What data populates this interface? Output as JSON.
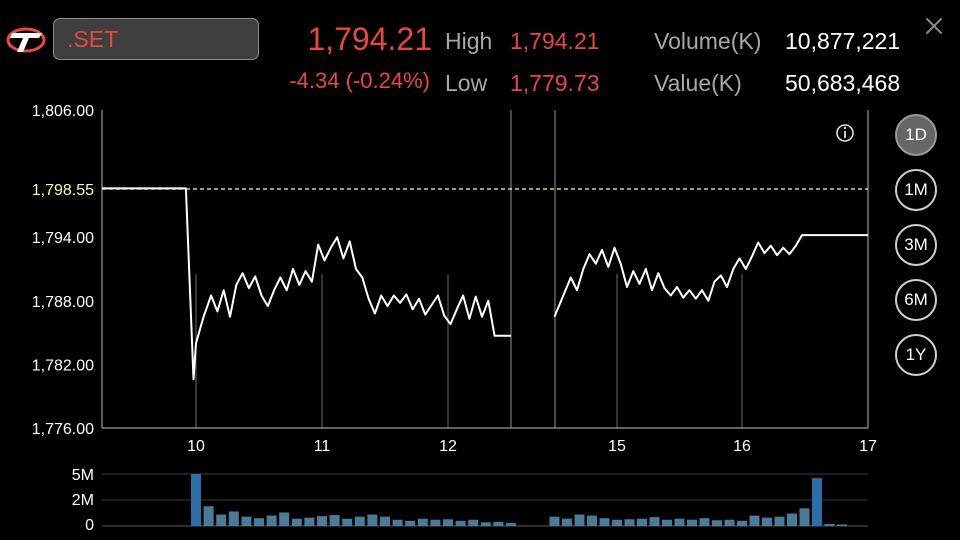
{
  "header": {
    "symbol": ".SET",
    "last_price": "1,794.21",
    "change": "-4.34",
    "change_pct": "(-0.24%)",
    "high_label": "High",
    "high_value": "1,794.21",
    "low_label": "Low",
    "low_value": "1,779.73",
    "volume_label": "Volume(K)",
    "volume_value": "10,877,221",
    "value_label": "Value(K)",
    "value_value": "50,683,468"
  },
  "timeframes": [
    {
      "label": "1D",
      "active": true
    },
    {
      "label": "1M",
      "active": false
    },
    {
      "label": "3M",
      "active": false
    },
    {
      "label": "6M",
      "active": false
    },
    {
      "label": "1Y",
      "active": false
    }
  ],
  "colors": {
    "price_line": "#ffffff",
    "prev_close_line": "#ffff99",
    "down": "#e8483f",
    "volume_bar": "#4c7a99",
    "volume_bar_peak": "#2c6fa8"
  },
  "chart_data": {
    "type": "line",
    "prev_close": 1798.55,
    "prev_close_label": "1,798.55",
    "ylim": [
      1776,
      1806
    ],
    "y_ticks": [
      "1,806.00",
      "1,794.00",
      "1,788.00",
      "1,782.00",
      "1,776.00"
    ],
    "x_ticks": [
      "10",
      "11",
      "12",
      "15",
      "16",
      "17"
    ],
    "x_range": [
      9.25,
      17.0
    ],
    "sessions": [
      {
        "segment": "morning",
        "x": [
          9.25,
          9.92,
          9.98,
          10.0,
          10.06,
          10.12,
          10.17,
          10.22,
          10.27,
          10.32,
          10.37,
          10.42,
          10.47,
          10.52,
          10.57,
          10.62,
          10.67,
          10.72,
          10.77,
          10.82,
          10.87,
          10.92,
          10.97,
          11.02,
          11.07,
          11.12,
          11.17,
          11.22,
          11.27,
          11.32,
          11.37,
          11.42,
          11.47,
          11.52,
          11.57,
          11.62,
          11.67,
          11.72,
          11.77,
          11.82,
          11.87,
          11.92,
          11.97,
          12.02,
          12.07,
          12.12,
          12.17,
          12.22,
          12.27,
          12.32,
          12.37,
          12.42,
          12.47
        ],
        "y": [
          1798.6,
          1798.6,
          1780.6,
          1784.0,
          1786.5,
          1788.5,
          1787.0,
          1789.0,
          1786.5,
          1789.5,
          1790.6,
          1789.2,
          1790.3,
          1788.5,
          1787.5,
          1789.0,
          1790.2,
          1789.0,
          1791.0,
          1789.5,
          1790.8,
          1789.8,
          1793.3,
          1791.8,
          1793.0,
          1794.0,
          1792.0,
          1793.6,
          1791.0,
          1790.2,
          1788.2,
          1786.8,
          1788.5,
          1787.5,
          1788.5,
          1787.8,
          1788.6,
          1787.2,
          1788.2,
          1786.7,
          1787.6,
          1788.5,
          1786.6,
          1785.8,
          1787.2,
          1788.5,
          1786.3,
          1788.4,
          1786.5,
          1788.0,
          1784.7,
          1784.7,
          1784.7
        ]
      },
      {
        "segment": "afternoon",
        "x": [
          14.5,
          14.57,
          14.63,
          14.68,
          14.73,
          14.78,
          14.83,
          14.88,
          14.93,
          14.98,
          15.03,
          15.08,
          15.13,
          15.18,
          15.23,
          15.28,
          15.33,
          15.38,
          15.43,
          15.48,
          15.53,
          15.58,
          15.63,
          15.68,
          15.73,
          15.78,
          15.83,
          15.88,
          15.93,
          15.98,
          16.03,
          16.08,
          16.13,
          16.18,
          16.23,
          16.28,
          16.33,
          16.38,
          16.43,
          16.48,
          16.53,
          16.57,
          17.0
        ],
        "y": [
          1786.5,
          1788.5,
          1790.2,
          1789.0,
          1791.0,
          1792.4,
          1791.5,
          1792.8,
          1791.2,
          1793.0,
          1791.5,
          1789.3,
          1790.8,
          1789.6,
          1791.0,
          1789.0,
          1790.6,
          1789.2,
          1788.5,
          1789.3,
          1788.3,
          1789.0,
          1788.2,
          1789.0,
          1788.0,
          1789.8,
          1790.4,
          1789.3,
          1791.0,
          1792.0,
          1791.0,
          1792.2,
          1793.5,
          1792.5,
          1793.2,
          1792.3,
          1793.0,
          1792.4,
          1793.2,
          1794.2,
          1794.2,
          1794.2,
          1794.2
        ]
      }
    ],
    "volume": {
      "y_ticks": [
        "5M",
        "2M",
        "0"
      ],
      "ylim": [
        0,
        5000000
      ],
      "bars": [
        {
          "x": 10.0,
          "v": 5000000
        },
        {
          "x": 10.1,
          "v": 1900000
        },
        {
          "x": 10.2,
          "v": 1100000
        },
        {
          "x": 10.3,
          "v": 1400000
        },
        {
          "x": 10.4,
          "v": 900000
        },
        {
          "x": 10.5,
          "v": 750000
        },
        {
          "x": 10.6,
          "v": 1000000
        },
        {
          "x": 10.7,
          "v": 1300000
        },
        {
          "x": 10.8,
          "v": 700000
        },
        {
          "x": 10.9,
          "v": 800000
        },
        {
          "x": 11.0,
          "v": 950000
        },
        {
          "x": 11.1,
          "v": 1050000
        },
        {
          "x": 11.2,
          "v": 700000
        },
        {
          "x": 11.3,
          "v": 900000
        },
        {
          "x": 11.4,
          "v": 1100000
        },
        {
          "x": 11.5,
          "v": 900000
        },
        {
          "x": 11.6,
          "v": 600000
        },
        {
          "x": 11.7,
          "v": 500000
        },
        {
          "x": 11.8,
          "v": 700000
        },
        {
          "x": 11.9,
          "v": 600000
        },
        {
          "x": 12.0,
          "v": 650000
        },
        {
          "x": 12.1,
          "v": 500000
        },
        {
          "x": 12.2,
          "v": 600000
        },
        {
          "x": 12.3,
          "v": 350000
        },
        {
          "x": 12.4,
          "v": 400000
        },
        {
          "x": 12.5,
          "v": 300000
        },
        {
          "x": 14.5,
          "v": 900000
        },
        {
          "x": 14.6,
          "v": 700000
        },
        {
          "x": 14.7,
          "v": 1100000
        },
        {
          "x": 14.8,
          "v": 1000000
        },
        {
          "x": 14.9,
          "v": 750000
        },
        {
          "x": 15.0,
          "v": 600000
        },
        {
          "x": 15.1,
          "v": 650000
        },
        {
          "x": 15.2,
          "v": 700000
        },
        {
          "x": 15.3,
          "v": 850000
        },
        {
          "x": 15.4,
          "v": 600000
        },
        {
          "x": 15.5,
          "v": 700000
        },
        {
          "x": 15.6,
          "v": 600000
        },
        {
          "x": 15.7,
          "v": 750000
        },
        {
          "x": 15.8,
          "v": 550000
        },
        {
          "x": 15.9,
          "v": 600000
        },
        {
          "x": 16.0,
          "v": 500000
        },
        {
          "x": 16.1,
          "v": 1000000
        },
        {
          "x": 16.2,
          "v": 800000
        },
        {
          "x": 16.3,
          "v": 900000
        },
        {
          "x": 16.4,
          "v": 1200000
        },
        {
          "x": 16.5,
          "v": 1700000
        },
        {
          "x": 16.6,
          "v": 4600000
        },
        {
          "x": 16.7,
          "v": 200000
        },
        {
          "x": 16.8,
          "v": 150000
        }
      ]
    }
  }
}
